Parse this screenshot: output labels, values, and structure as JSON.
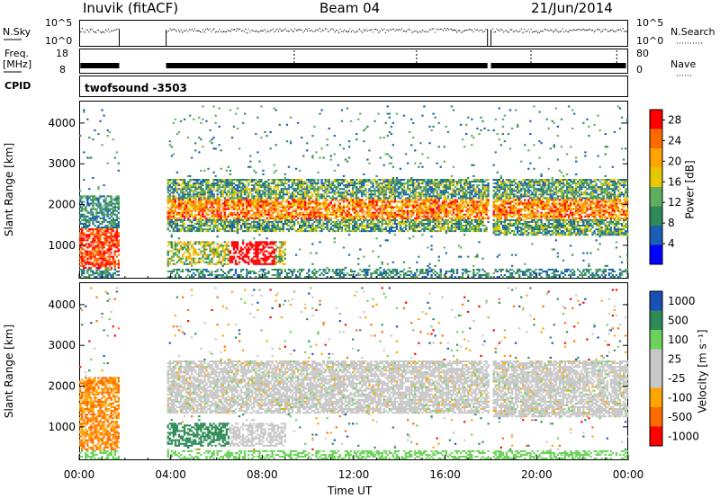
{
  "header": {
    "station": "Inuvik (fitACF)",
    "beam": "Beam 04",
    "date": "21/Jun/2014"
  },
  "colors": {
    "power_scale": [
      "#0000ff",
      "#1a5fb4",
      "#2e8b57",
      "#5fae5f",
      "#e6c800",
      "#ffa500",
      "#ff6a00",
      "#ff0000"
    ],
    "velocity_scale": [
      "#ff0000",
      "#ff6a00",
      "#ffa500",
      "#c8c8c8",
      "#c8c8c8",
      "#6bd35a",
      "#2e8b57",
      "#1a4fb4"
    ]
  },
  "top_panels": {
    "nsky": {
      "left_label": "N.Sky",
      "right_label": "N.Search",
      "left_ticks": [
        "10^5",
        "10^0"
      ],
      "right_ticks": [
        "10^5",
        "10^0"
      ]
    },
    "freq": {
      "left_label": "Freq.",
      "left_unit": "[MHz]",
      "right_label": "Nave",
      "left_ticks": [
        "18",
        "8"
      ],
      "right_ticks": [
        "80",
        "0"
      ]
    },
    "cpid": {
      "label": "CPID",
      "program": "twofsound -3503"
    }
  },
  "chart_data": [
    {
      "type": "heatmap",
      "title": "",
      "xlabel": "Time UT",
      "ylabel": "Slant Range [km]",
      "xlim": [
        0,
        24
      ],
      "ylim": [
        180,
        4550
      ],
      "x_ticks": [
        "00:00",
        "04:00",
        "08:00",
        "12:00",
        "16:00",
        "20:00",
        "00:00"
      ],
      "y_ticks": [
        1000,
        2000,
        3000,
        4000
      ],
      "colorbar": {
        "label": "Power [dB]",
        "ticks": [
          4,
          8,
          12,
          16,
          20,
          24,
          28
        ],
        "range": [
          0,
          30
        ]
      },
      "data_gaps_hours": [
        [
          1.75,
          3.8
        ],
        [
          17.85,
          18.0
        ]
      ]
    },
    {
      "type": "heatmap",
      "title": "",
      "xlabel": "Time UT",
      "ylabel": "Slant Range [km]",
      "xlim": [
        0,
        24
      ],
      "ylim": [
        180,
        4550
      ],
      "x_ticks": [
        "00:00",
        "04:00",
        "08:00",
        "12:00",
        "16:00",
        "20:00",
        "00:00"
      ],
      "y_ticks": [
        1000,
        2000,
        3000,
        4000
      ],
      "colorbar": {
        "label": "Velocity [m s⁻¹]",
        "ticks": [
          "1000",
          "500",
          "100",
          "25",
          "-25",
          "-100",
          "-500",
          "-1000"
        ]
      },
      "data_gaps_hours": [
        [
          1.75,
          3.8
        ],
        [
          17.85,
          18.0
        ]
      ]
    }
  ]
}
